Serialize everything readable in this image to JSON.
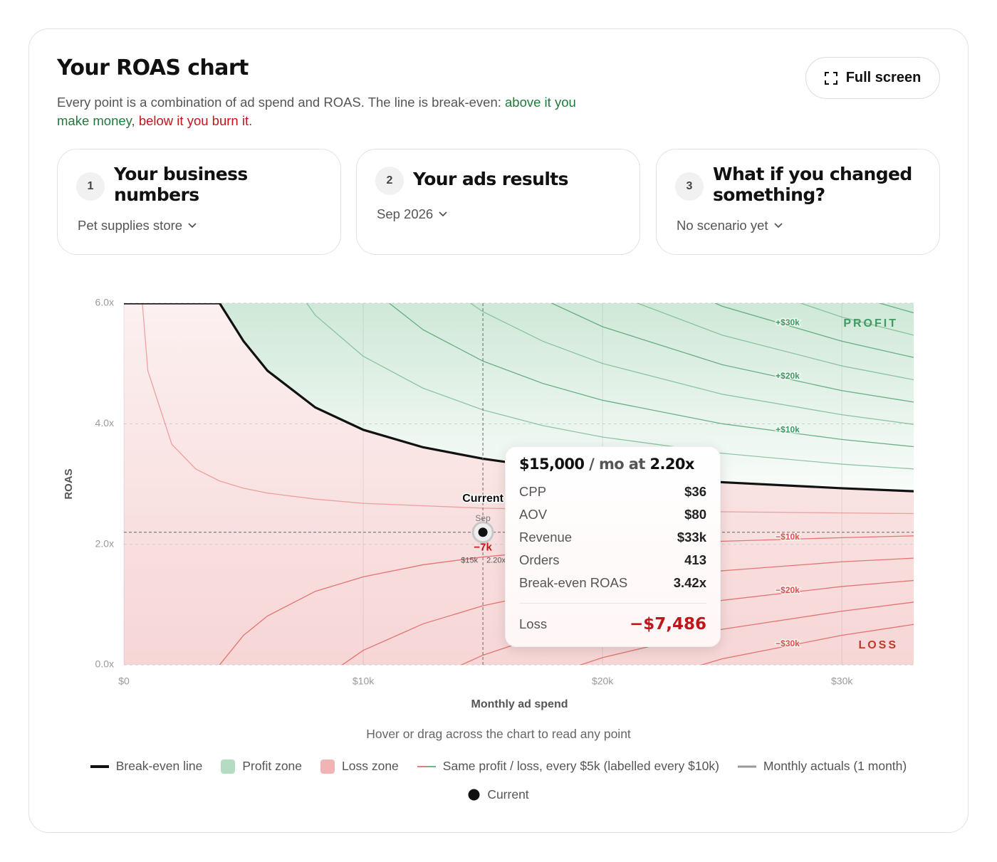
{
  "header": {
    "title": "Your ROAS chart",
    "description": {
      "lead": "Every point is a combination of ad spend and ROAS. The line is break-even: ",
      "good": "above it you make money",
      "sep": ", ",
      "bad": "below it you burn it",
      "end": "."
    },
    "button": "Full screen"
  },
  "cards": [
    {
      "number": 1,
      "title": "Your business numbers",
      "select": "Pet supplies store"
    },
    {
      "number": 2,
      "title": "Your ads results",
      "select": "Sep 2026"
    },
    {
      "number": 3,
      "title": "What if you changed something?",
      "select": "No scenario yet"
    }
  ],
  "chart_data": {
    "type": "line",
    "x_label": "Monthly ad spend",
    "y_label": "ROAS",
    "xlim": [
      0,
      33000
    ],
    "ylim": [
      0,
      6
    ],
    "xticks": [
      {
        "value": 0,
        "label": "$0"
      },
      {
        "value": 10000,
        "label": "$10k"
      },
      {
        "value": 20000,
        "label": "$20k"
      },
      {
        "value": 30000,
        "label": "$30k"
      }
    ],
    "yticks": [
      {
        "value": 0,
        "label": "0.0x"
      },
      {
        "value": 2,
        "label": "2.0x"
      },
      {
        "value": 4,
        "label": "4.0x"
      },
      {
        "value": 6,
        "label": "6.0x"
      }
    ],
    "grid": true,
    "x": [
      0,
      500,
      1000,
      2000,
      3000,
      4000,
      5000,
      6000,
      8000,
      10000,
      12500,
      15000,
      17500,
      20000,
      25000,
      30000,
      33000
    ],
    "series": [
      {
        "name": "Break-even line",
        "color": "#111111",
        "values": [
          6,
          6,
          6,
          6,
          6,
          6,
          5.37,
          4.88,
          4.27,
          3.9,
          3.61,
          3.42,
          3.28,
          3.17,
          3.03,
          2.93,
          2.88
        ]
      }
    ],
    "zones": {
      "profit": {
        "name": "Profit zone",
        "label": "PROFIT",
        "color": "#b5dcc2",
        "text_color": "#3f9a63"
      },
      "loss": {
        "name": "Loss zone",
        "label": "LOSS",
        "color": "#f0b4b4",
        "text_color": "#c0392b"
      }
    },
    "contours": {
      "name": "Same profit / loss, every $5k (labelled every $10k)",
      "levels": [
        {
          "label": "−$30k",
          "color": "#d9534f",
          "values": [
            null,
            null,
            null,
            null,
            null,
            null,
            null,
            null,
            null,
            null,
            null,
            null,
            null,
            -0.49,
            0.1,
            0.49,
            0.67
          ]
        },
        {
          "color": "#d9534f",
          "values": [
            null,
            null,
            null,
            null,
            null,
            null,
            null,
            null,
            null,
            null,
            null,
            null,
            -0.21,
            0.12,
            0.59,
            0.89,
            1.04
          ]
        },
        {
          "label": "−$20k",
          "color": "#d9534f",
          "values": [
            null,
            null,
            null,
            null,
            null,
            null,
            null,
            null,
            null,
            null,
            -0.29,
            0.16,
            0.49,
            0.73,
            1.07,
            1.3,
            1.4
          ]
        },
        {
          "color": "#d9534f",
          "values": [
            null,
            null,
            null,
            null,
            null,
            null,
            null,
            null,
            -0.31,
            0.24,
            0.68,
            0.98,
            1.19,
            1.34,
            1.56,
            1.71,
            1.77
          ]
        },
        {
          "label": "−$10k",
          "color": "#d9534f",
          "values": [
            null,
            null,
            null,
            null,
            -0.81,
            0,
            0.49,
            0.81,
            1.22,
            1.46,
            1.66,
            1.79,
            1.88,
            1.95,
            2.05,
            2.11,
            2.14
          ]
        },
        {
          "color": "#e58a87",
          "values": [
            null,
            7.32,
            4.88,
            3.66,
            3.25,
            3.05,
            2.93,
            2.85,
            2.75,
            2.68,
            2.64,
            2.6,
            2.58,
            2.56,
            2.54,
            2.52,
            2.51
          ]
        },
        {
          "color": "#6fb58a",
          "values": [
            null,
            null,
            null,
            null,
            null,
            null,
            null,
            6.91,
            5.8,
            5.12,
            4.59,
            4.23,
            3.97,
            3.78,
            3.51,
            3.33,
            3.25
          ]
        },
        {
          "label": "+$10k",
          "color": "#3f9a63",
          "values": [
            null,
            null,
            null,
            null,
            null,
            null,
            null,
            null,
            null,
            6.34,
            5.56,
            5.04,
            4.67,
            4.39,
            4.0,
            3.74,
            3.62
          ]
        },
        {
          "color": "#6fb58a",
          "values": [
            null,
            null,
            null,
            null,
            null,
            null,
            null,
            null,
            null,
            null,
            6.54,
            5.86,
            5.37,
            5.0,
            4.49,
            4.15,
            3.99
          ]
        },
        {
          "label": "+$20k",
          "color": "#3f9a63",
          "values": [
            null,
            null,
            null,
            null,
            null,
            null,
            null,
            null,
            null,
            null,
            null,
            6.67,
            6.07,
            5.61,
            4.98,
            4.55,
            4.36
          ]
        },
        {
          "color": "#6fb58a",
          "values": [
            null,
            null,
            null,
            null,
            null,
            null,
            null,
            null,
            null,
            null,
            null,
            null,
            6.76,
            6.22,
            5.47,
            4.96,
            4.73
          ]
        },
        {
          "label": "+$30k",
          "color": "#3f9a63",
          "values": [
            null,
            null,
            null,
            null,
            null,
            null,
            null,
            null,
            null,
            null,
            null,
            null,
            null,
            6.83,
            5.95,
            5.37,
            5.1
          ]
        },
        {
          "color": "#6fb58a",
          "values": [
            null,
            null,
            null,
            null,
            null,
            null,
            null,
            null,
            null,
            null,
            null,
            null,
            null,
            null,
            6.44,
            5.77,
            5.47
          ]
        },
        {
          "color": "#3f9a63",
          "values": [
            null,
            null,
            null,
            null,
            null,
            null,
            null,
            null,
            null,
            null,
            null,
            null,
            null,
            null,
            6.93,
            6.18,
            5.84
          ]
        }
      ]
    },
    "actuals": {
      "name": "Monthly actuals (1 month)",
      "color": "#999999"
    },
    "current": {
      "name": "Current",
      "month": "Sep",
      "x": 15000,
      "y": 2.2,
      "delta_label": "−7k",
      "x_label": "$15k",
      "y_label": "2.20x",
      "color": "#111111"
    },
    "tooltip": {
      "spend": "$15,000",
      "mid": " / mo at ",
      "roas": "2.20x",
      "rows": [
        [
          "CPP",
          "$36"
        ],
        [
          "AOV",
          "$80"
        ],
        [
          "Revenue",
          "$33k"
        ],
        [
          "Orders",
          "413"
        ],
        [
          "Break-even ROAS",
          "3.42x"
        ]
      ],
      "result": [
        "Loss",
        "−$7,486"
      ]
    },
    "hint": "Hover or drag across the chart to read any point"
  }
}
